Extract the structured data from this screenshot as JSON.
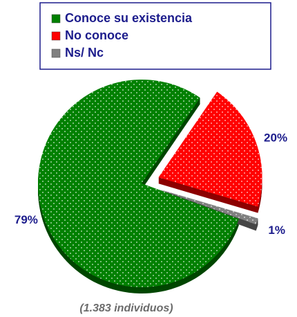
{
  "chart_data": {
    "type": "pie",
    "categories": [
      "Conoce su existencia",
      "No conoce",
      "Ns/ Nc"
    ],
    "values": [
      79,
      20,
      1
    ],
    "value_labels": [
      "79%",
      "20%",
      "1%"
    ],
    "colors": [
      "#008000",
      "#ff0000",
      "#808080"
    ],
    "caption": "(1.383 individuos)"
  }
}
